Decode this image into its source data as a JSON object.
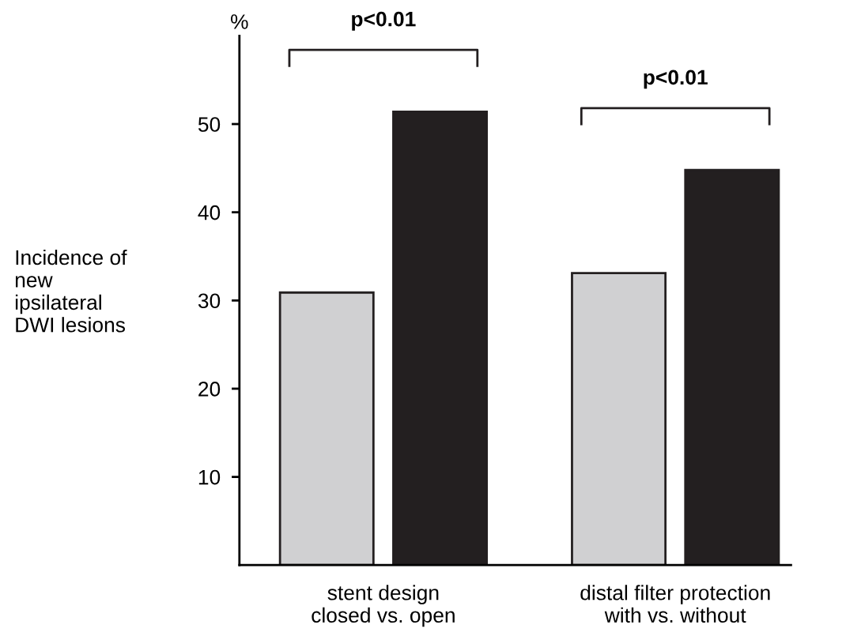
{
  "chart_data": {
    "type": "bar",
    "categories": [
      "stent design\nclosed vs. open",
      "distal filter protection\nwith vs. without"
    ],
    "series": [
      {
        "color": "#d0d0d2",
        "values": [
          30.9,
          33.1
        ]
      },
      {
        "color": "#231f20",
        "values": [
          51.4,
          44.8
        ]
      }
    ],
    "ylabel": "Incidence of\nnew\nipsilateral\nDWI lesions",
    "annotations": [
      "p<0.01",
      "p<0.01",
      "%"
    ],
    "ylim": [
      0,
      60
    ],
    "yticks": [
      10,
      20,
      30,
      40,
      50
    ],
    "grid": false,
    "legend": false
  }
}
